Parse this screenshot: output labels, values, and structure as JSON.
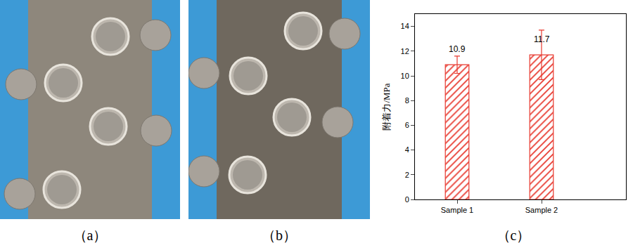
{
  "panels": [
    {
      "caption": "（a）"
    },
    {
      "caption": "（b）"
    }
  ],
  "chart_data": {
    "type": "bar",
    "caption": "（c）",
    "categories": [
      "Sample 1",
      "Sample 2"
    ],
    "values": [
      10.9,
      11.7
    ],
    "errors": [
      0.7,
      2.0
    ],
    "color": "#e8392f",
    "ylabel": "附着力/MPa",
    "ylim": [
      0,
      15
    ],
    "yticks": [
      0,
      2,
      4,
      6,
      8,
      10,
      12,
      14
    ],
    "data_labels": true,
    "grid": false
  }
}
